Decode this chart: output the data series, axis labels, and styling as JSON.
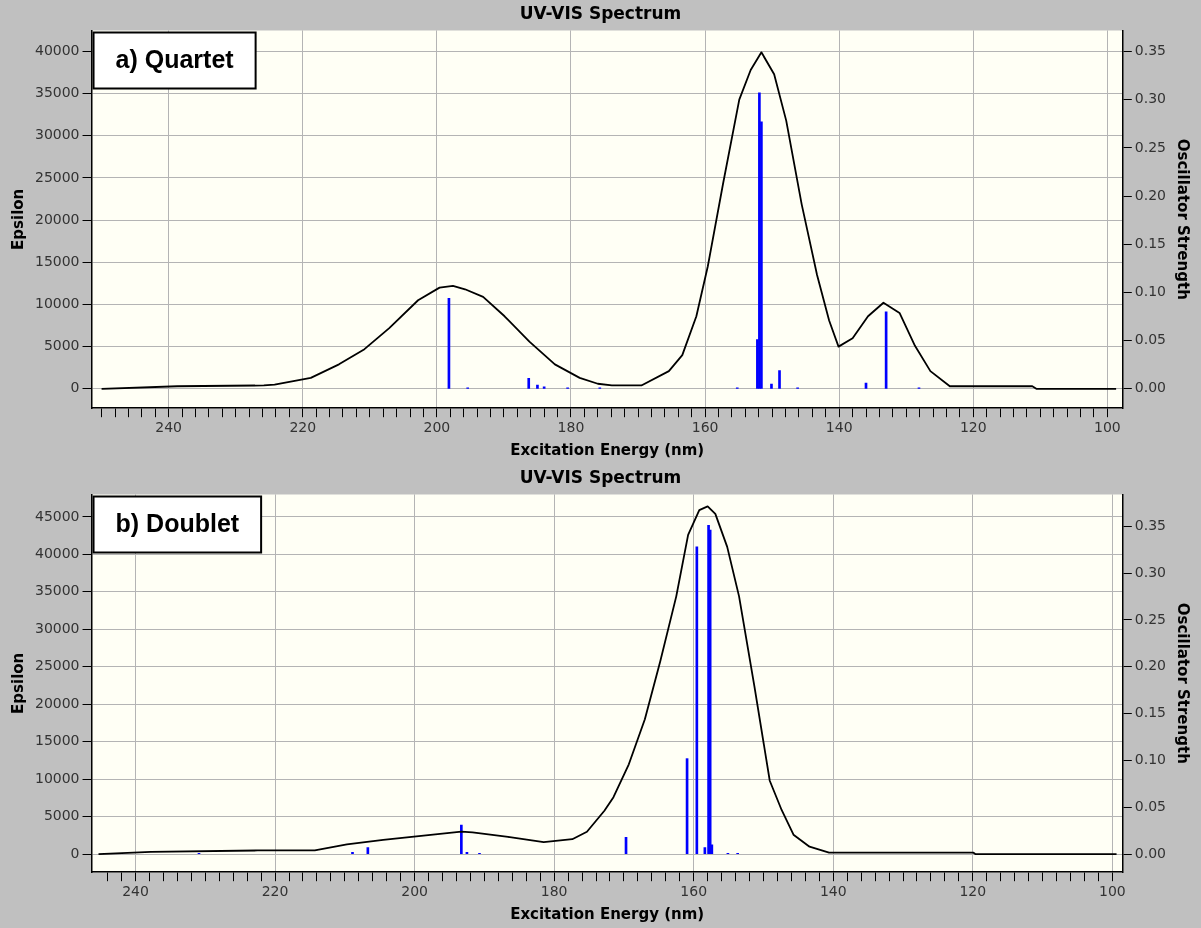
{
  "chart_data": [
    {
      "type": "line",
      "title": "UV-VIS Spectrum",
      "xlabel": "Excitation Energy (nm)",
      "ylabel": "Epsilon",
      "y2label": "Oscillator Strength",
      "annotations": [
        "a) Quartet"
      ],
      "xlim": [
        251.5,
        97.7
      ],
      "ylim": [
        -2300,
        42500
      ],
      "y2lim": [
        -0.0201,
        0.3719
      ],
      "xticks": [
        {
          "value": 250,
          "label": null
        },
        {
          "value": 248,
          "label": null
        },
        {
          "value": 246,
          "label": null
        },
        {
          "value": 244,
          "label": null
        },
        {
          "value": 242,
          "label": null
        },
        240,
        {
          "value": 238,
          "label": null
        },
        {
          "value": 236,
          "label": null
        },
        {
          "value": 234,
          "label": null
        },
        {
          "value": 232,
          "label": null
        },
        {
          "value": 230,
          "label": null
        },
        {
          "value": 228,
          "label": null
        },
        {
          "value": 226,
          "label": null
        },
        {
          "value": 224,
          "label": null
        },
        {
          "value": 222,
          "label": null
        },
        220,
        {
          "value": 218,
          "label": null
        },
        {
          "value": 216,
          "label": null
        },
        {
          "value": 214,
          "label": null
        },
        {
          "value": 212,
          "label": null
        },
        {
          "value": 210,
          "label": null
        },
        {
          "value": 208,
          "label": null
        },
        {
          "value": 206,
          "label": null
        },
        {
          "value": 204,
          "label": null
        },
        {
          "value": 202,
          "label": null
        },
        200,
        {
          "value": 198,
          "label": null
        },
        {
          "value": 196,
          "label": null
        },
        {
          "value": 194,
          "label": null
        },
        {
          "value": 192,
          "label": null
        },
        {
          "value": 190,
          "label": null
        },
        {
          "value": 188,
          "label": null
        },
        {
          "value": 186,
          "label": null
        },
        {
          "value": 184,
          "label": null
        },
        {
          "value": 182,
          "label": null
        },
        180,
        {
          "value": 178,
          "label": null
        },
        {
          "value": 176,
          "label": null
        },
        {
          "value": 174,
          "label": null
        },
        {
          "value": 172,
          "label": null
        },
        {
          "value": 170,
          "label": null
        },
        {
          "value": 168,
          "label": null
        },
        {
          "value": 166,
          "label": null
        },
        {
          "value": 164,
          "label": null
        },
        {
          "value": 162,
          "label": null
        },
        160,
        {
          "value": 158,
          "label": null
        },
        {
          "value": 156,
          "label": null
        },
        {
          "value": 154,
          "label": null
        },
        {
          "value": 152,
          "label": null
        },
        {
          "value": 150,
          "label": null
        },
        {
          "value": 148,
          "label": null
        },
        {
          "value": 146,
          "label": null
        },
        {
          "value": 144,
          "label": null
        },
        {
          "value": 142,
          "label": null
        },
        140,
        {
          "value": 138,
          "label": null
        },
        {
          "value": 136,
          "label": null
        },
        {
          "value": 134,
          "label": null
        },
        {
          "value": 132,
          "label": null
        },
        {
          "value": 130,
          "label": null
        },
        {
          "value": 128,
          "label": null
        },
        {
          "value": 126,
          "label": null
        },
        {
          "value": 124,
          "label": null
        },
        {
          "value": 122,
          "label": null
        },
        120,
        {
          "value": 118,
          "label": null
        },
        {
          "value": 116,
          "label": null
        },
        {
          "value": 114,
          "label": null
        },
        {
          "value": 112,
          "label": null
        },
        {
          "value": 110,
          "label": null
        },
        {
          "value": 108,
          "label": null
        },
        {
          "value": 106,
          "label": null
        },
        {
          "value": 104,
          "label": null
        },
        {
          "value": 102,
          "label": null
        },
        100
      ],
      "yticks": [
        0,
        5000,
        10000,
        15000,
        20000,
        25000,
        30000,
        35000,
        40000
      ],
      "y2ticks": [
        {
          "value": 0,
          "label": "0.00"
        },
        {
          "value": 0.05,
          "label": "0.05"
        },
        {
          "value": 0.1,
          "label": "0.10"
        },
        {
          "value": 0.15,
          "label": "0.15"
        },
        {
          "value": 0.2,
          "label": "0.20"
        },
        {
          "value": 0.25,
          "label": "0.25"
        },
        {
          "value": 0.3,
          "label": "0.30"
        },
        {
          "value": 0.35,
          "label": "0.35"
        }
      ],
      "grid": true,
      "legend": false,
      "marker": "none",
      "series": [
        {
          "color": "#000000",
          "x": [
            250,
            238.7,
            225.8,
            224.2,
            218.8,
            214.6,
            210.8,
            207.1,
            202.8,
            199.6,
            197.6,
            195.8,
            193.1,
            189.9,
            186.2,
            182.4,
            178.7,
            176,
            173.9,
            169.5,
            165.4,
            163.4,
            161.3,
            159.6,
            157.3,
            154.9,
            153.2,
            151.6,
            149.7,
            147.9,
            145.6,
            143.3,
            141.5,
            140.1,
            138,
            135.7,
            133.4,
            131,
            128.7,
            126.4,
            123.5,
            111.2,
            110.6,
            98.7
          ],
          "values": [
            0,
            300,
            400,
            500,
            1300,
            2900,
            4700,
            7200,
            10500,
            12000,
            12200,
            11800,
            10900,
            8600,
            5600,
            2900,
            1300,
            600,
            400,
            400,
            2100,
            4000,
            8600,
            14500,
            24400,
            34300,
            37800,
            39900,
            37300,
            31800,
            21900,
            13500,
            8100,
            5000,
            6000,
            8600,
            10200,
            9000,
            5100,
            2100,
            300,
            300,
            0,
            0
          ]
        },
        {
          "type": "bar",
          "axis": "y2",
          "color": "#0000ff",
          "x": [
            198.2,
            195.4,
            186.3,
            185,
            184,
            180.5,
            175.7,
            155.2,
            152.2,
            151.9,
            151.6,
            150.1,
            148.9,
            146.2,
            136,
            133,
            128.1
          ],
          "values": [
            0.094,
            0.001,
            0.011,
            0.004,
            0.002,
            0.001,
            0.001,
            0.001,
            0.051,
            0.307,
            0.277,
            0.005,
            0.019,
            0.001,
            0.006,
            0.08,
            0.001
          ]
        }
      ]
    },
    {
      "type": "line",
      "title": "UV-VIS Spectrum",
      "xlabel": "Excitation Energy (nm)",
      "ylabel": "Epsilon",
      "y2label": "Oscillator Strength",
      "annotations": [
        "b) Doublet"
      ],
      "xlim": [
        246.3,
        98.5
      ],
      "ylim": [
        -2400,
        48000
      ],
      "y2lim": [
        -0.0192,
        0.384
      ],
      "xticks": [
        {
          "value": 244,
          "label": null
        },
        {
          "value": 242,
          "label": null
        },
        240,
        {
          "value": 238,
          "label": null
        },
        {
          "value": 236,
          "label": null
        },
        {
          "value": 234,
          "label": null
        },
        {
          "value": 232,
          "label": null
        },
        {
          "value": 230,
          "label": null
        },
        {
          "value": 228,
          "label": null
        },
        {
          "value": 226,
          "label": null
        },
        {
          "value": 224,
          "label": null
        },
        {
          "value": 222,
          "label": null
        },
        220,
        {
          "value": 218,
          "label": null
        },
        {
          "value": 216,
          "label": null
        },
        {
          "value": 214,
          "label": null
        },
        {
          "value": 212,
          "label": null
        },
        {
          "value": 210,
          "label": null
        },
        {
          "value": 208,
          "label": null
        },
        {
          "value": 206,
          "label": null
        },
        {
          "value": 204,
          "label": null
        },
        {
          "value": 202,
          "label": null
        },
        200,
        {
          "value": 198,
          "label": null
        },
        {
          "value": 196,
          "label": null
        },
        {
          "value": 194,
          "label": null
        },
        {
          "value": 192,
          "label": null
        },
        {
          "value": 190,
          "label": null
        },
        {
          "value": 188,
          "label": null
        },
        {
          "value": 186,
          "label": null
        },
        {
          "value": 184,
          "label": null
        },
        {
          "value": 182,
          "label": null
        },
        180,
        {
          "value": 178,
          "label": null
        },
        {
          "value": 176,
          "label": null
        },
        {
          "value": 174,
          "label": null
        },
        {
          "value": 172,
          "label": null
        },
        {
          "value": 170,
          "label": null
        },
        {
          "value": 168,
          "label": null
        },
        {
          "value": 166,
          "label": null
        },
        {
          "value": 164,
          "label": null
        },
        {
          "value": 162,
          "label": null
        },
        160,
        {
          "value": 158,
          "label": null
        },
        {
          "value": 156,
          "label": null
        },
        {
          "value": 154,
          "label": null
        },
        {
          "value": 152,
          "label": null
        },
        {
          "value": 150,
          "label": null
        },
        {
          "value": 148,
          "label": null
        },
        {
          "value": 146,
          "label": null
        },
        {
          "value": 144,
          "label": null
        },
        {
          "value": 142,
          "label": null
        },
        140,
        {
          "value": 138,
          "label": null
        },
        {
          "value": 136,
          "label": null
        },
        {
          "value": 134,
          "label": null
        },
        {
          "value": 132,
          "label": null
        },
        {
          "value": 130,
          "label": null
        },
        {
          "value": 128,
          "label": null
        },
        {
          "value": 126,
          "label": null
        },
        {
          "value": 124,
          "label": null
        },
        {
          "value": 122,
          "label": null
        },
        120,
        {
          "value": 118,
          "label": null
        },
        {
          "value": 116,
          "label": null
        },
        {
          "value": 114,
          "label": null
        },
        {
          "value": 112,
          "label": null
        },
        {
          "value": 110,
          "label": null
        },
        {
          "value": 108,
          "label": null
        },
        {
          "value": 106,
          "label": null
        },
        {
          "value": 104,
          "label": null
        },
        {
          "value": 102,
          "label": null
        },
        100
      ],
      "yticks": [
        0,
        5000,
        10000,
        15000,
        20000,
        25000,
        30000,
        35000,
        40000,
        45000
      ],
      "y2ticks": [
        {
          "value": 0,
          "label": "0.00"
        },
        {
          "value": 0.05,
          "label": "0.05"
        },
        {
          "value": 0.1,
          "label": "0.10"
        },
        {
          "value": 0.15,
          "label": "0.15"
        },
        {
          "value": 0.2,
          "label": "0.20"
        },
        {
          "value": 0.25,
          "label": "0.25"
        },
        {
          "value": 0.3,
          "label": "0.30"
        },
        {
          "value": 0.35,
          "label": "0.35"
        }
      ],
      "grid": true,
      "legend": false,
      "marker": "none",
      "series": [
        {
          "color": "#000000",
          "x": [
            245.3,
            237.8,
            222.5,
            214.3,
            209.7,
            204.5,
            199.4,
            193.3,
            191.7,
            186.6,
            181.5,
            177.4,
            175.3,
            172.8,
            171.5,
            169.3,
            167,
            164.8,
            162.5,
            160.8,
            159.2,
            158,
            156.9,
            155.2,
            153.5,
            151.3,
            149.1,
            147.4,
            145.7,
            143.4,
            140.6,
            119.9,
            119.6,
            99.4
          ],
          "values": [
            0,
            300,
            500,
            500,
            1300,
            1900,
            2400,
            3000,
            2900,
            2300,
            1600,
            2000,
            3000,
            5800,
            7600,
            12000,
            18000,
            25700,
            34400,
            42600,
            45900,
            46400,
            45400,
            41000,
            34400,
            22400,
            9800,
            5900,
            2600,
            1000,
            200,
            200,
            0,
            0
          ]
        },
        {
          "type": "bar",
          "axis": "y2",
          "color": "#0000ff",
          "x": [
            230.9,
            208.9,
            206.7,
            193.3,
            192.5,
            190.7,
            169.7,
            160.95,
            159.55,
            158.4,
            157.87,
            157.64,
            157.4,
            155.1,
            153.7
          ],
          "values": [
            0.001,
            0.002,
            0.007,
            0.031,
            0.002,
            0.001,
            0.018,
            0.102,
            0.328,
            0.007,
            0.351,
            0.346,
            0.01,
            0.001,
            0.001
          ]
        }
      ]
    }
  ]
}
